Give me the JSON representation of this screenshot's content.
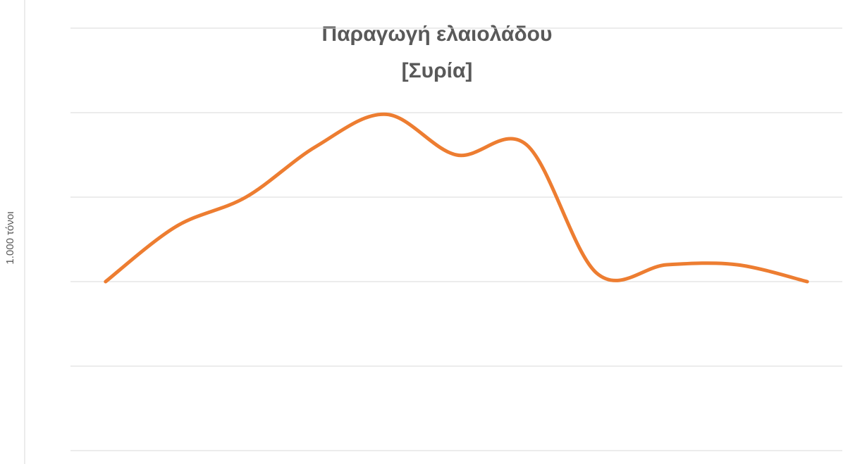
{
  "chart_data": {
    "type": "line",
    "title": "Παραγωγή ελαιολάδου",
    "subtitle": "[Συρία]",
    "y_label": "1.000 τόνοι",
    "categories": [
      null,
      null,
      null,
      null,
      null,
      null,
      null,
      null,
      null,
      null,
      null
    ],
    "series": [
      {
        "name": "Συρία",
        "color": "#ED7D31",
        "values": [
          100,
          132.5,
          150,
          180,
          199,
          175,
          181,
          105,
          110,
          110,
          100
        ]
      }
    ],
    "ylim": [
      0,
      250
    ],
    "yticks": [
      0,
      50,
      100,
      150,
      200,
      250
    ],
    "grid": true,
    "tick_labels": false,
    "smooth": true,
    "legend": false
  }
}
